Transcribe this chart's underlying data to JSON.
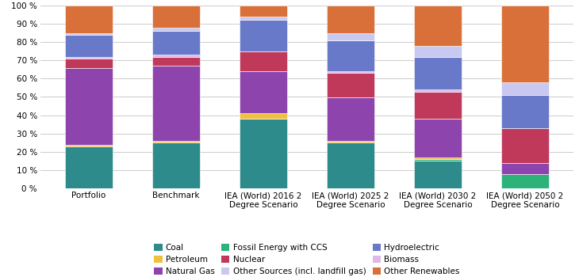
{
  "categories": [
    "Portfolio",
    "Benchmark",
    "IEA (World) 2016 2\nDegree Scenario",
    "IEA (World) 2025 2\nDegree Scenario",
    "IEA (World) 2030 2\nDegree Scenario",
    "IEA (World) 2050 2\nDegree Scenario"
  ],
  "series": [
    {
      "name": "Coal",
      "color": "#2e8b8b",
      "values": [
        23,
        25,
        38,
        25,
        15,
        0
      ]
    },
    {
      "name": "Fossil Energy with CCS",
      "color": "#2db37a",
      "values": [
        0,
        0,
        0,
        0,
        1,
        8
      ]
    },
    {
      "name": "Petroleum",
      "color": "#f0c040",
      "values": [
        1,
        1,
        3,
        1,
        1,
        0
      ]
    },
    {
      "name": "Natural Gas",
      "color": "#8e44ad",
      "values": [
        42,
        41,
        23,
        24,
        21,
        6
      ]
    },
    {
      "name": "Nuclear",
      "color": "#c0395a",
      "values": [
        5,
        5,
        11,
        13,
        15,
        19
      ]
    },
    {
      "name": "Biomass",
      "color": "#ddb8e8",
      "values": [
        1,
        1,
        0,
        1,
        1,
        0
      ]
    },
    {
      "name": "Hydroelectric",
      "color": "#6979c9",
      "values": [
        12,
        13,
        17,
        17,
        18,
        18
      ]
    },
    {
      "name": "Other Sources (incl. landfill gas)",
      "color": "#c8c8f0",
      "values": [
        1,
        2,
        2,
        4,
        6,
        7
      ]
    },
    {
      "name": "Other Renewables",
      "color": "#d9703a",
      "values": [
        15,
        12,
        6,
        15,
        22,
        42
      ]
    }
  ],
  "ylim": [
    0,
    100
  ],
  "ytick_labels": [
    "0 %",
    "10 %",
    "20 %",
    "30 %",
    "40 %",
    "50 %",
    "60 %",
    "70 %",
    "80 %",
    "90 %",
    "100 %"
  ],
  "background_color": "#ffffff",
  "grid_color": "#cccccc",
  "bar_width": 0.55,
  "legend_order": [
    "Coal",
    "Petroleum",
    "Natural Gas",
    "Fossil Energy with CCS",
    "Nuclear",
    "Other Sources (incl. landfill gas)",
    "Hydroelectric",
    "Biomass",
    "Other Renewables"
  ]
}
